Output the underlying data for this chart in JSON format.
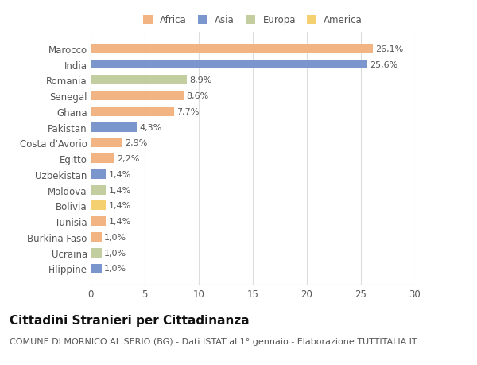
{
  "categories": [
    "Marocco",
    "India",
    "Romania",
    "Senegal",
    "Ghana",
    "Pakistan",
    "Costa d'Avorio",
    "Egitto",
    "Uzbekistan",
    "Moldova",
    "Bolivia",
    "Tunisia",
    "Burkina Faso",
    "Ucraina",
    "Filippine"
  ],
  "values": [
    26.1,
    25.6,
    8.9,
    8.6,
    7.7,
    4.3,
    2.9,
    2.2,
    1.4,
    1.4,
    1.4,
    1.4,
    1.0,
    1.0,
    1.0
  ],
  "labels": [
    "26,1%",
    "25,6%",
    "8,9%",
    "8,6%",
    "7,7%",
    "4,3%",
    "2,9%",
    "2,2%",
    "1,4%",
    "1,4%",
    "1,4%",
    "1,4%",
    "1,0%",
    "1,0%",
    "1,0%"
  ],
  "colors": [
    "#F2B482",
    "#7A96CC",
    "#C2CE9F",
    "#F2B482",
    "#F2B482",
    "#7A96CC",
    "#F2B482",
    "#F2B482",
    "#7A96CC",
    "#C2CE9F",
    "#F5D070",
    "#F2B482",
    "#F2B482",
    "#C2CE9F",
    "#7A96CC"
  ],
  "legend_labels": [
    "Africa",
    "Asia",
    "Europa",
    "America"
  ],
  "legend_colors": [
    "#F2B482",
    "#7A96CC",
    "#C2CE9F",
    "#F5D070"
  ],
  "xlim": [
    0,
    30
  ],
  "xticks": [
    0,
    5,
    10,
    15,
    20,
    25,
    30
  ],
  "title": "Cittadini Stranieri per Cittadinanza",
  "subtitle": "COMUNE DI MORNICO AL SERIO (BG) - Dati ISTAT al 1° gennaio - Elaborazione TUTTITALIA.IT",
  "background_color": "#ffffff",
  "bar_height": 0.6,
  "title_fontsize": 11,
  "subtitle_fontsize": 8,
  "label_fontsize": 8,
  "tick_fontsize": 8.5
}
